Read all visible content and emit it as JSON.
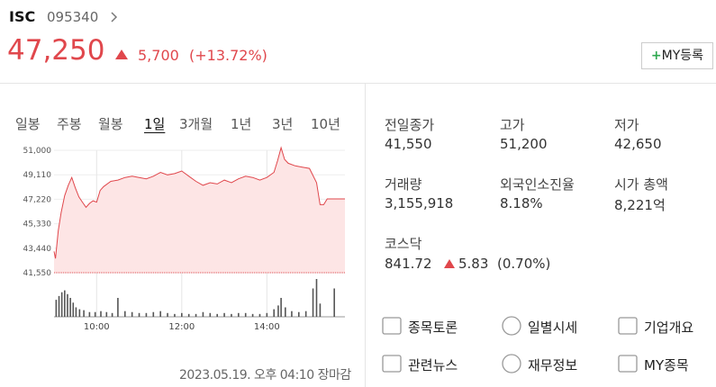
{
  "header": {
    "name": "ISC",
    "code": "095340",
    "price": "47,250",
    "change": "5,700",
    "change_pct": "(+13.72%)",
    "my_button": "MY등록"
  },
  "periods": [
    "일봉",
    "주봉",
    "월봉",
    "1일",
    "3개월",
    "1년",
    "3년",
    "10년"
  ],
  "selected_period_index": 3,
  "chart_data": {
    "type": "line",
    "color": "#e0474c",
    "area_color": "#fde5e5",
    "x": [
      540,
      542,
      546,
      550,
      555,
      560,
      565,
      570,
      575,
      580,
      585,
      590,
      595,
      600,
      605,
      610,
      620,
      630,
      640,
      650,
      660,
      670,
      680,
      690,
      700,
      710,
      720,
      730,
      740,
      750,
      760,
      770,
      780,
      790,
      800,
      810,
      820,
      830,
      840,
      850,
      855,
      860,
      865,
      870,
      880,
      890,
      900,
      910,
      915,
      920,
      925,
      950
    ],
    "values": [
      43200,
      42650,
      44800,
      46200,
      47500,
      48300,
      48900,
      48100,
      47400,
      47000,
      46600,
      46900,
      47100,
      47000,
      47900,
      48200,
      48600,
      48700,
      48900,
      49000,
      48900,
      48800,
      49000,
      49300,
      49100,
      49200,
      49400,
      49000,
      48600,
      48300,
      48500,
      48400,
      48700,
      48500,
      48800,
      49000,
      48900,
      48700,
      48900,
      49300,
      50200,
      51200,
      50300,
      50000,
      49800,
      49700,
      49600,
      48500,
      46800,
      46800,
      47250,
      47250
    ],
    "xlim": [
      540,
      950
    ],
    "ylim": [
      41550,
      51000
    ],
    "xticks": [
      {
        "value": 600,
        "label": "10:00"
      },
      {
        "value": 720,
        "label": "12:00"
      },
      {
        "value": 840,
        "label": "14:00"
      }
    ],
    "yticks": [
      {
        "value": 41550,
        "label": "41,550"
      },
      {
        "value": 43440,
        "label": "43,440"
      },
      {
        "value": 45330,
        "label": "45,330"
      },
      {
        "value": 47220,
        "label": "47,220"
      },
      {
        "value": 49110,
        "label": "49,110"
      },
      {
        "value": 51000,
        "label": "51,000"
      }
    ],
    "grid": true,
    "volume": {
      "color": "#555555",
      "x": [
        543,
        547,
        551,
        555,
        559,
        563,
        567,
        571,
        576,
        582,
        590,
        598,
        606,
        614,
        622,
        630,
        640,
        650,
        660,
        670,
        680,
        690,
        700,
        710,
        720,
        730,
        740,
        750,
        760,
        770,
        780,
        790,
        800,
        810,
        820,
        830,
        840,
        850,
        856,
        860,
        866,
        875,
        885,
        895,
        905,
        910,
        915,
        935
      ],
      "values": [
        18,
        22,
        26,
        28,
        24,
        20,
        15,
        10,
        8,
        7,
        5,
        5,
        6,
        5,
        4,
        20,
        6,
        5,
        4,
        4,
        5,
        6,
        4,
        3,
        4,
        3,
        3,
        5,
        4,
        3,
        4,
        3,
        4,
        4,
        3,
        3,
        4,
        8,
        12,
        20,
        10,
        6,
        5,
        6,
        30,
        40,
        14,
        30
      ]
    }
  },
  "stats": [
    {
      "label": "전일종가",
      "value": "41,550",
      "up": false
    },
    {
      "label": "고가",
      "value": "51,200",
      "up": true
    },
    {
      "label": "저가",
      "value": "42,650",
      "up": true
    },
    {
      "label": "거래량",
      "value": "3,155,918",
      "up": false
    },
    {
      "label": "외국인소진율",
      "value": "8.18%",
      "up": false
    },
    {
      "label": "시가 총액",
      "value": "8,221억",
      "up": false
    }
  ],
  "index": {
    "label": "코스닥",
    "value": "841.72",
    "change": "5.83",
    "change_pct": "(0.70%)"
  },
  "links": [
    "종목토론",
    "일별시세",
    "기업개요",
    "관련뉴스",
    "재무정보",
    "MY종목"
  ],
  "timestamp": "2023.05.19. 오후 04:10 장마감"
}
